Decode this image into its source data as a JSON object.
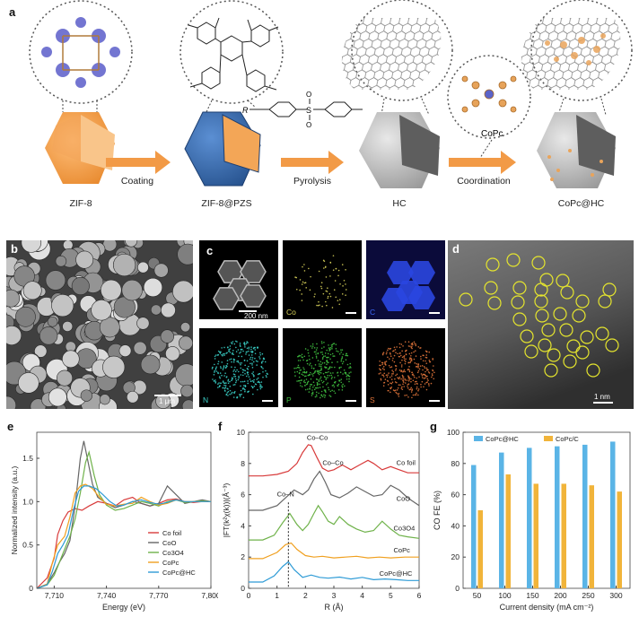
{
  "panel_a": {
    "label": "a",
    "stages": [
      "ZIF-8",
      "ZIF-8@PZS",
      "HC",
      "CoPc@HC"
    ],
    "arrows": [
      "Coating",
      "Pyrolysis",
      "Coordination"
    ],
    "molecule_label": "CoPc",
    "r_label": "R",
    "so2_s": "S",
    "so2_o": "O"
  },
  "panel_b": {
    "label": "b",
    "scale": "1 μm"
  },
  "panel_c": {
    "label": "c",
    "scale": "200 nm",
    "tiles": [
      {
        "name": "",
        "color": "#ffffff"
      },
      {
        "name": "Co",
        "color": "#d8d25a"
      },
      {
        "name": "C",
        "color": "#3d6bff"
      },
      {
        "name": "N",
        "color": "#3ad0c8"
      },
      {
        "name": "P",
        "color": "#3fc040"
      },
      {
        "name": "S",
        "color": "#e0743a"
      }
    ]
  },
  "panel_d": {
    "label": "d",
    "scale": "1 nm"
  },
  "panel_e": {
    "label": "e"
  },
  "panel_f": {
    "label": "f"
  },
  "panel_g": {
    "label": "g"
  },
  "colors": {
    "co_foil": "#d83a3a",
    "coo": "#666666",
    "co3o4": "#6fb24a",
    "copc": "#f0a020",
    "copc_hc": "#2e9bd6",
    "bar_hc": "#5ab4e6",
    "bar_c": "#f1b43a",
    "orange": "#f29a46",
    "blue_crystal": "#3d6fb4"
  },
  "chart_data": [
    {
      "type": "line",
      "panel": "e",
      "xlabel": "Energy (eV)",
      "ylabel": "Normalized intensity (a.u.)",
      "xlim": [
        7700,
        7800
      ],
      "ylim": [
        0,
        1.8
      ],
      "xticks": [
        "7,710",
        "7,740",
        "7,770",
        "7,800"
      ],
      "yticks": [
        "0",
        "0.5",
        "1.0",
        "1.5"
      ],
      "legend_position": "bottom-right",
      "series": [
        {
          "name": "Co foil",
          "x": [
            7700,
            7706,
            7710,
            7712,
            7715,
            7718,
            7722,
            7726,
            7730,
            7735,
            7740,
            7745,
            7750,
            7755,
            7760,
            7765,
            7770,
            7775,
            7780,
            7785,
            7790,
            7795,
            7800
          ],
          "y": [
            0,
            0.12,
            0.35,
            0.62,
            0.78,
            0.88,
            0.92,
            0.9,
            0.95,
            1.0,
            0.98,
            0.95,
            1.02,
            1.05,
            0.98,
            0.95,
            0.98,
            1.02,
            1.03,
            1.0,
            0.99,
            1.0,
            1.0
          ]
        },
        {
          "name": "CoO",
          "x": [
            7700,
            7706,
            7710,
            7713,
            7716,
            7719,
            7722,
            7725,
            7727,
            7729,
            7732,
            7735,
            7740,
            7745,
            7750,
            7755,
            7760,
            7765,
            7770,
            7775,
            7780,
            7785,
            7790,
            7795,
            7800
          ],
          "y": [
            0,
            0.05,
            0.18,
            0.3,
            0.4,
            0.55,
            0.95,
            1.5,
            1.7,
            1.5,
            1.2,
            1.05,
            0.98,
            0.93,
            0.96,
            1.0,
            0.98,
            0.95,
            0.98,
            1.18,
            1.08,
            0.98,
            1.0,
            1.02,
            1.0
          ]
        },
        {
          "name": "Co3O4",
          "x": [
            7700,
            7706,
            7710,
            7713,
            7716,
            7719,
            7722,
            7725,
            7728,
            7730,
            7733,
            7736,
            7740,
            7745,
            7750,
            7755,
            7760,
            7765,
            7770,
            7775,
            7780,
            7785,
            7790,
            7795,
            7800
          ],
          "y": [
            0,
            0.04,
            0.15,
            0.3,
            0.45,
            0.6,
            0.8,
            1.1,
            1.45,
            1.57,
            1.3,
            1.08,
            0.96,
            0.9,
            0.92,
            0.96,
            1.0,
            0.98,
            0.95,
            1.0,
            1.02,
            0.99,
            1.0,
            1.01,
            1.0
          ]
        },
        {
          "name": "CoPc",
          "x": [
            7700,
            7706,
            7709,
            7712,
            7714,
            7716,
            7719,
            7722,
            7725,
            7728,
            7732,
            7736,
            7740,
            7745,
            7750,
            7755,
            7760,
            7765,
            7770,
            7775,
            7780,
            7785,
            7790,
            7795,
            7800
          ],
          "y": [
            0,
            0.05,
            0.3,
            0.5,
            0.55,
            0.6,
            0.82,
            1.1,
            1.18,
            1.2,
            1.15,
            1.05,
            0.97,
            0.95,
            0.97,
            0.98,
            1.05,
            1.0,
            0.96,
            0.98,
            1.02,
            1.0,
            1.0,
            1.0,
            1.0
          ]
        },
        {
          "name": "CoPc@HC",
          "x": [
            7700,
            7706,
            7709,
            7712,
            7715,
            7718,
            7721,
            7724,
            7727,
            7730,
            7734,
            7738,
            7742,
            7746,
            7750,
            7755,
            7760,
            7765,
            7770,
            7775,
            7780,
            7785,
            7790,
            7795,
            7800
          ],
          "y": [
            0,
            0.04,
            0.2,
            0.4,
            0.5,
            0.62,
            0.9,
            1.12,
            1.18,
            1.18,
            1.15,
            1.08,
            1.0,
            0.95,
            0.96,
            1.0,
            1.02,
            0.99,
            0.97,
            0.99,
            1.02,
            1.0,
            1.0,
            1.0,
            1.0
          ]
        }
      ]
    },
    {
      "type": "line",
      "panel": "f",
      "xlabel": "R (Å)",
      "ylabel": "|FT(k²χ(k))|(Å⁻³)",
      "xlim": [
        0,
        6
      ],
      "ylim": [
        0,
        10
      ],
      "xticks": [
        "0",
        "1",
        "2",
        "3",
        "4",
        "5",
        "6"
      ],
      "yticks": [
        "0",
        "2",
        "4",
        "6",
        "8",
        "10"
      ],
      "annotations": [
        "Co–Co",
        "Co–Co",
        "Co–N"
      ],
      "marker_x": 1.4,
      "series": [
        {
          "name": "Co foil",
          "x": [
            0,
            0.5,
            1.0,
            1.4,
            1.7,
            1.9,
            2.1,
            2.2,
            2.4,
            2.6,
            2.8,
            3.0,
            3.3,
            3.6,
            3.9,
            4.2,
            4.4,
            4.7,
            5.0,
            5.3,
            5.6,
            6.0
          ],
          "y": [
            7.2,
            7.2,
            7.3,
            7.5,
            8.0,
            8.7,
            9.2,
            9.15,
            8.4,
            7.7,
            7.5,
            7.6,
            7.9,
            7.6,
            7.9,
            8.2,
            8.0,
            7.6,
            7.8,
            7.6,
            7.4,
            7.4
          ]
        },
        {
          "name": "CoO",
          "x": [
            0,
            0.5,
            1.0,
            1.3,
            1.6,
            1.9,
            2.1,
            2.3,
            2.5,
            2.7,
            2.9,
            3.2,
            3.5,
            3.8,
            4.1,
            4.4,
            4.7,
            5.0,
            5.3,
            5.6,
            6.0
          ],
          "y": [
            5.0,
            5.0,
            5.3,
            5.8,
            6.3,
            6.0,
            6.3,
            7.0,
            7.5,
            6.8,
            6.0,
            5.8,
            6.1,
            6.5,
            6.2,
            5.9,
            6.0,
            6.6,
            6.3,
            5.8,
            5.3
          ]
        },
        {
          "name": "Co3O4",
          "x": [
            0,
            0.5,
            0.9,
            1.2,
            1.45,
            1.7,
            1.9,
            2.1,
            2.3,
            2.45,
            2.6,
            2.8,
            3.0,
            3.2,
            3.5,
            3.8,
            4.1,
            4.4,
            4.7,
            5.0,
            5.3,
            5.6,
            6.0
          ],
          "y": [
            3.1,
            3.1,
            3.4,
            4.2,
            4.8,
            4.1,
            3.7,
            4.1,
            4.8,
            5.3,
            4.9,
            4.3,
            4.1,
            4.6,
            4.1,
            3.8,
            3.6,
            3.7,
            4.3,
            3.8,
            3.4,
            3.3,
            3.2
          ]
        },
        {
          "name": "CoPc",
          "x": [
            0,
            0.5,
            1.0,
            1.3,
            1.5,
            1.7,
            2.0,
            2.3,
            2.6,
            3.0,
            3.4,
            3.8,
            4.2,
            4.6,
            5.0,
            5.5,
            6.0
          ],
          "y": [
            1.9,
            1.9,
            2.3,
            2.8,
            2.9,
            2.5,
            2.1,
            2.0,
            2.05,
            1.95,
            2.0,
            2.05,
            1.95,
            2.0,
            1.95,
            2.0,
            2.0
          ]
        },
        {
          "name": "CoPc@HC",
          "x": [
            0,
            0.5,
            0.9,
            1.2,
            1.4,
            1.6,
            1.9,
            2.2,
            2.5,
            2.8,
            3.2,
            3.6,
            4.0,
            4.4,
            4.8,
            5.2,
            5.6,
            6.0
          ],
          "y": [
            0.4,
            0.4,
            0.8,
            1.4,
            1.7,
            1.2,
            0.7,
            0.85,
            0.7,
            0.65,
            0.72,
            0.6,
            0.7,
            0.55,
            0.6,
            0.55,
            0.5,
            0.5
          ]
        }
      ]
    },
    {
      "type": "bar",
      "panel": "g",
      "xlabel": "Current density (mA cm⁻²)",
      "ylabel": "CO FE (%)",
      "ylim": [
        0,
        100
      ],
      "categories": [
        "50",
        "100",
        "150",
        "200",
        "250",
        "300"
      ],
      "yticks": [
        "0",
        "20",
        "40",
        "60",
        "80",
        "100"
      ],
      "legend_position": "top",
      "series": [
        {
          "name": "CoPc@HC",
          "values": [
            79,
            87,
            90,
            91,
            92,
            94
          ]
        },
        {
          "name": "CoPc/C",
          "values": [
            50,
            73,
            67,
            67,
            66,
            62
          ]
        }
      ]
    }
  ]
}
